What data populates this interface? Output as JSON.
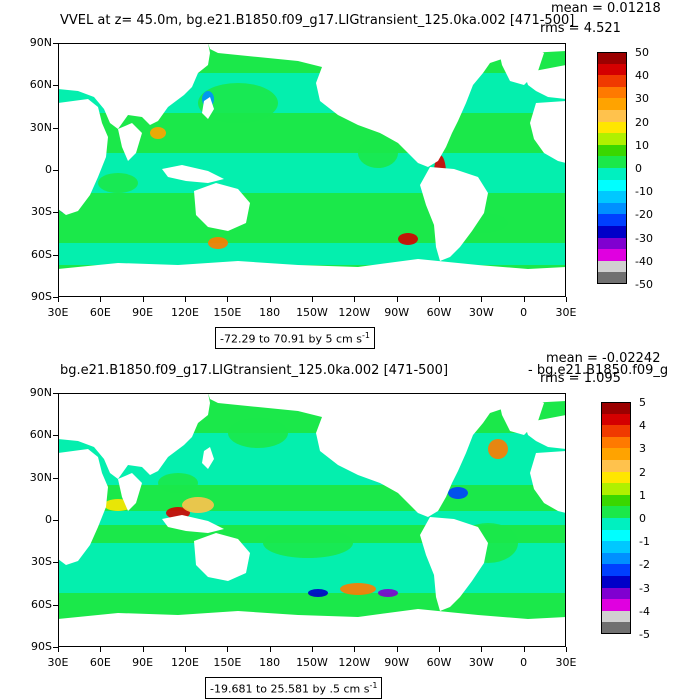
{
  "panels": [
    {
      "title": "VVEL at z=   45.0m, bg.e21.B1850.f09_g17.LIGtransient_125.0ka.002 [471-500]",
      "stats": {
        "mean": "mean = 0.01218",
        "rms": "rms = 4.521"
      },
      "range_text": "-72.29 to 70.91 by 5 cm s",
      "range_unit_sup": "-1",
      "colorbar": {
        "labels": [
          "50",
          "40",
          "30",
          "20",
          "10",
          "0",
          "-10",
          "-20",
          "-30",
          "-40",
          "-50"
        ],
        "colors": [
          "#9b0000",
          "#d40000",
          "#f03a00",
          "#ff7a00",
          "#ffa300",
          "#ffc24d",
          "#ffe600",
          "#b0f000",
          "#3ad700",
          "#1be84a",
          "#00f0c0",
          "#00ffff",
          "#00c8ff",
          "#0090ff",
          "#0040ff",
          "#0000c8",
          "#8000d0",
          "#e000e0",
          "#d0d0d0",
          "#707070"
        ]
      }
    },
    {
      "title": "bg.e21.B1850.f09_g17.LIGtransient_125.0ka.002 [471-500]",
      "title_overlap": "- bg.e21.B1850.f09_g",
      "stats": {
        "mean": "mean = -0.02242",
        "rms": "rms = 1.095"
      },
      "range_text": "-19.681 to 25.581 by .5 cm s",
      "range_unit_sup": "-1",
      "colorbar": {
        "labels": [
          "5",
          "4",
          "3",
          "2",
          "1",
          "0",
          "-1",
          "-2",
          "-3",
          "-4",
          "-5"
        ],
        "colors": [
          "#9b0000",
          "#d40000",
          "#f03a00",
          "#ff7a00",
          "#ffa300",
          "#ffc24d",
          "#ffe600",
          "#b0f000",
          "#3ad700",
          "#1be84a",
          "#00f0c0",
          "#00ffff",
          "#00c8ff",
          "#0090ff",
          "#0040ff",
          "#0000c8",
          "#8000d0",
          "#e000e0",
          "#d0d0d0",
          "#707070"
        ]
      }
    }
  ],
  "axes": {
    "lat_ticks": [
      "90N",
      "60N",
      "30N",
      "0",
      "30S",
      "60S",
      "90S"
    ],
    "lon_ticks": [
      "30E",
      "60E",
      "90E",
      "120E",
      "150E",
      "180",
      "150W",
      "120W",
      "90W",
      "60W",
      "30W",
      "0",
      "30E"
    ]
  },
  "colors": {
    "ocean_main": "#1be84a",
    "ocean_alt": "#00f0c0",
    "land": "#ffffff"
  }
}
